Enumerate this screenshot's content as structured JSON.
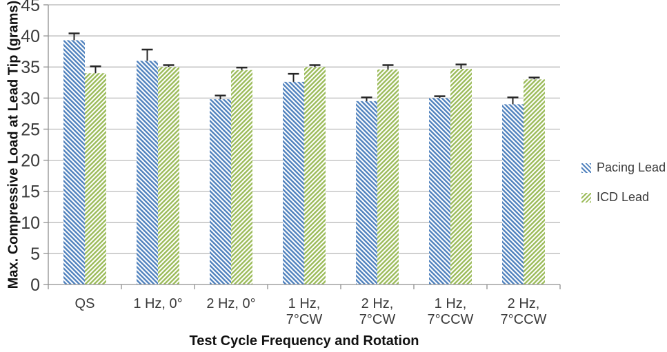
{
  "chart_data": {
    "type": "bar",
    "xlabel": "Test Cycle Frequency and Rotation",
    "ylabel": "Max. Compressive  Load at Lead Tip (grams)",
    "ylim": [
      0,
      45
    ],
    "ytick_step": 5,
    "grid": true,
    "legend_position": "right",
    "categories": [
      "QS",
      "1 Hz, 0°",
      "2 Hz, 0°",
      "1 Hz,\n7°CW",
      "2 Hz,\n7°CW",
      "1 Hz,\n7°CCW",
      "2 Hz,\n7°CCW"
    ],
    "series": [
      {
        "name": "Pacing Lead",
        "color": "#4F81BD",
        "hatch": "backslash",
        "values": [
          39.3,
          36.0,
          29.8,
          32.6,
          29.5,
          30.0,
          29.0
        ],
        "errors_up": [
          1.1,
          1.8,
          0.6,
          1.3,
          0.6,
          0.3,
          1.1
        ]
      },
      {
        "name": "ICD Lead",
        "color": "#9BBB59",
        "hatch": "slash",
        "values": [
          34.0,
          35.0,
          34.5,
          35.0,
          34.6,
          34.7,
          33.0
        ],
        "errors_up": [
          1.1,
          0.3,
          0.4,
          0.3,
          0.7,
          0.7,
          0.3
        ]
      }
    ],
    "colors": {
      "grid": "#b3b3b3",
      "axis": "#8f8f8f",
      "error_bar": "#262626",
      "tick_label": "#3a3a3a"
    }
  }
}
